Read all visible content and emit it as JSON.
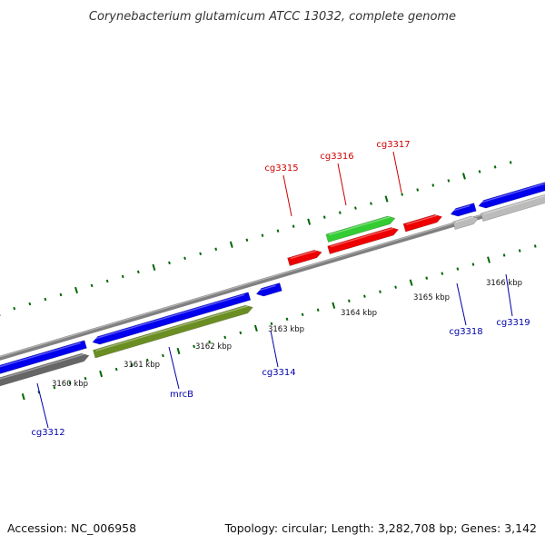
{
  "title": "Corynebacterium glutamicum ATCC 13032, complete genome",
  "footer": {
    "accession": "Accession: NC_006958",
    "summary": "Topology: circular; Length: 3,282,708 bp; Genes: 3,142"
  },
  "colors": {
    "forward_label": "#cc0000",
    "reverse_label": "#0000aa",
    "backbone": "#808080",
    "tick": "#006600",
    "blue_gene": "#0000ee",
    "red_gene": "#ee0000",
    "green_gene": "#33cc33",
    "olive_gene": "#6b8e23",
    "gray_gene": "#bbbbbb",
    "dark_gray_gene": "#666666",
    "teal_gene": "#00ddaa"
  },
  "scale_labels": [
    "3160 kbp",
    "3161 kbp",
    "3162 kbp",
    "3163 kbp",
    "3164 kbp",
    "3165 kbp",
    "3166 kbp"
  ],
  "gene_labels": {
    "forward": [
      "cg3315",
      "cg3316",
      "cg3317"
    ],
    "reverse": [
      "cg3312",
      "mrcB",
      "cg3314",
      "cg3318",
      "cg3319"
    ]
  }
}
